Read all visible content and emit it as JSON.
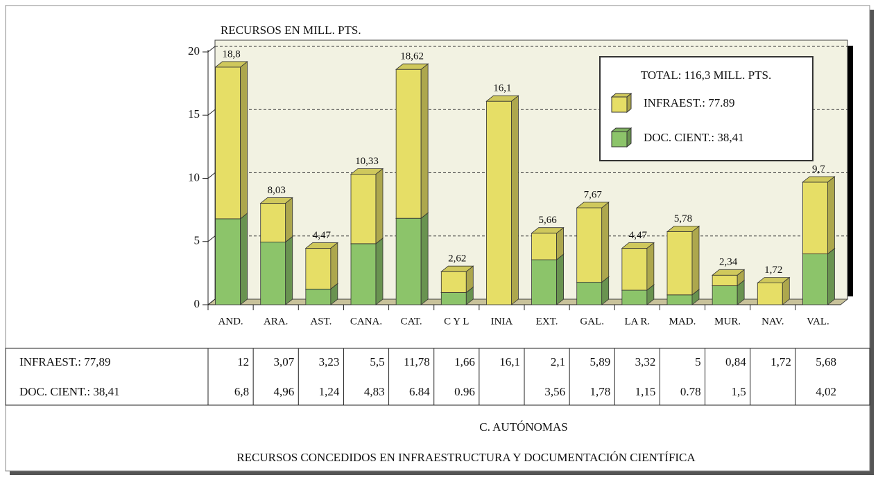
{
  "chart_data": {
    "type": "bar",
    "stacked": true,
    "title": "RECURSOS CONCEDIDOS EN INFRAESTRUCTURA Y DOCUMENTACIÓN CIENTÍFICA",
    "y_label": "RECURSOS EN MILL. PTS.",
    "x_label": "C. AUTÓNOMAS",
    "legend_title": "TOTAL: 116,3 MILL. PTS.",
    "categories": [
      "AND.",
      "ARA.",
      "AST.",
      "CANA.",
      "CAT.",
      "C Y L",
      "INIA",
      "EXT.",
      "GAL.",
      "LA R.",
      "MAD.",
      "MUR.",
      "NAV.",
      "VAL."
    ],
    "series": [
      {
        "name": "DOC. CIENT.: 38,41",
        "table_label": "DOC. CIENT.: 38,41",
        "color": "#8cc46a",
        "values": [
          6.8,
          4.96,
          1.24,
          4.83,
          6.84,
          0.96,
          null,
          3.56,
          1.78,
          1.15,
          0.78,
          1.5,
          null,
          4.02
        ],
        "value_labels": [
          "6,8",
          "4,96",
          "1,24",
          "4,83",
          "6.84",
          "0.96",
          null,
          "3,56",
          "1,78",
          "1,15",
          "0.78",
          "1,5",
          null,
          "4,02"
        ]
      },
      {
        "name": "INFRAEST.: 77.89",
        "table_label": "INFRAEST.: 77,89",
        "color": "#e6de66",
        "values": [
          12,
          3.07,
          3.23,
          5.5,
          11.78,
          1.66,
          16.1,
          2.1,
          5.89,
          3.32,
          5,
          0.84,
          1.72,
          5.68
        ],
        "value_labels": [
          "12",
          "3,07",
          "3,23",
          "5,5",
          "11,78",
          "1,66",
          "16,1",
          "2,1",
          "5,89",
          "3,32",
          "5",
          "0,84",
          "1,72",
          "5,68"
        ]
      }
    ],
    "total_labels": [
      "18,8",
      "8,03",
      "4,47",
      "10,33",
      "18,62",
      "2,62",
      "16,1",
      "5,66",
      "7,67",
      "4,47",
      "5,78",
      "2,34",
      "1,72",
      "9,7"
    ],
    "ylim": [
      0,
      20
    ],
    "yticks": [
      0,
      5,
      10,
      15,
      20
    ],
    "grid": true
  }
}
